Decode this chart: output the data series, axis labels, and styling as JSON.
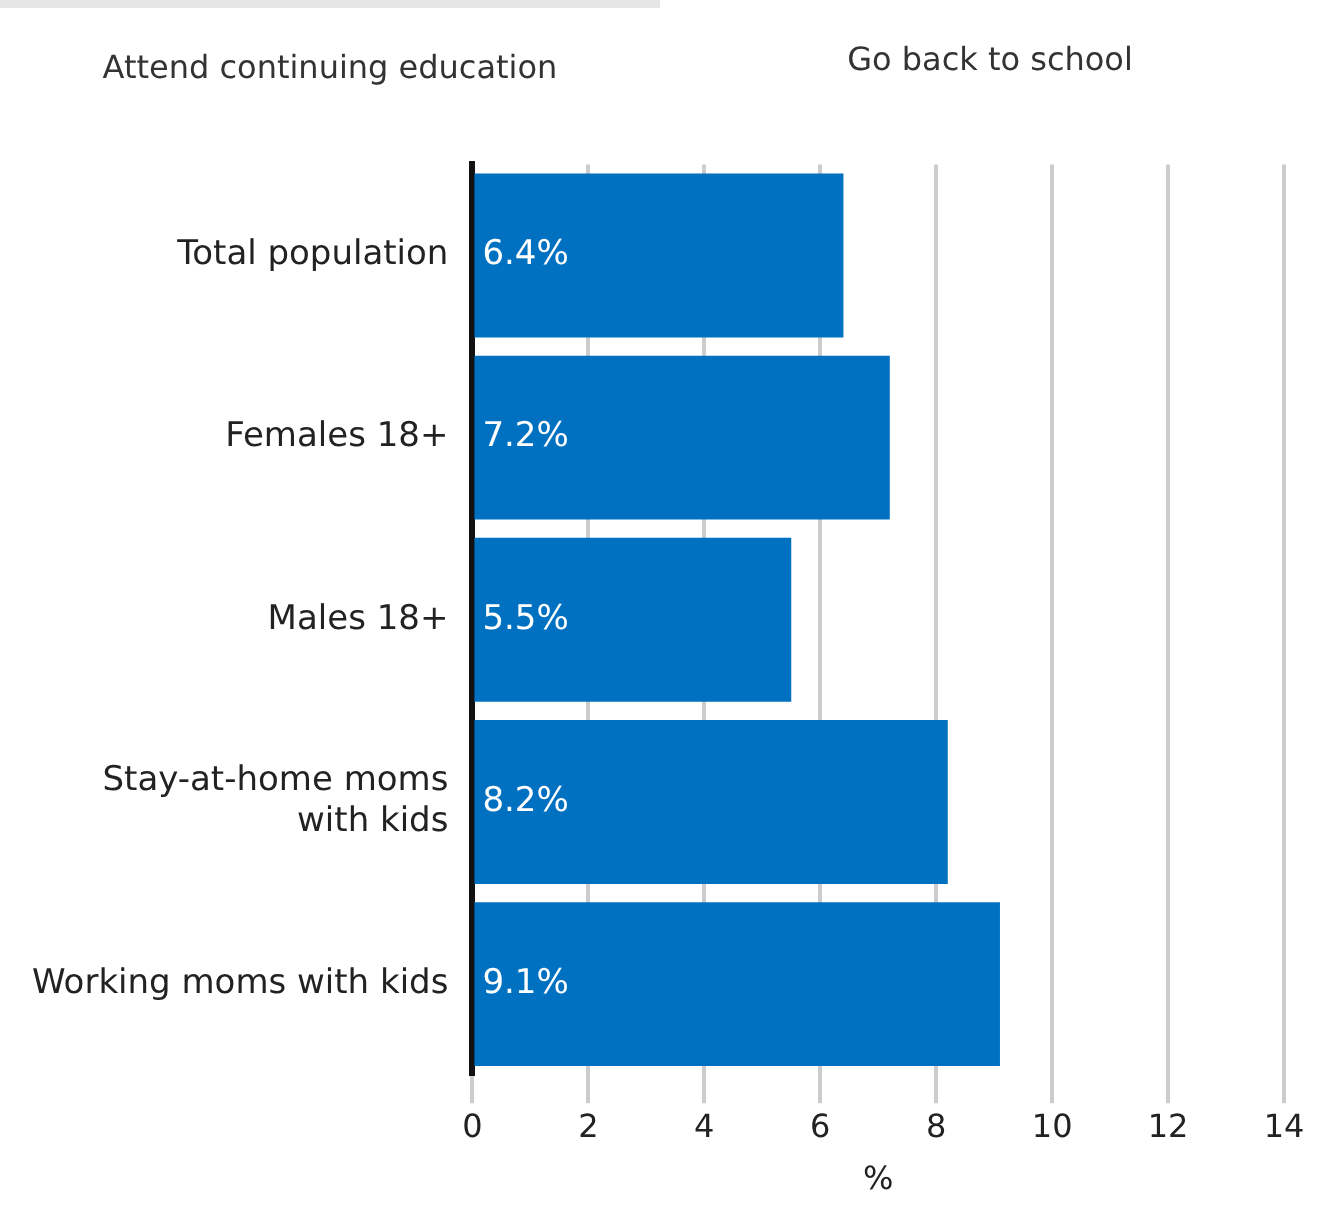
{
  "chart_data": {
    "type": "bar",
    "orientation": "horizontal",
    "categories": [
      "Total population",
      "Females 18+",
      "Males 18+",
      "Stay-at-home moms with kids",
      "Working moms with kids"
    ],
    "values": [
      6.4,
      7.2,
      5.5,
      8.2,
      9.1
    ],
    "value_labels": [
      "6.4%",
      "7.2%",
      "5.5%",
      "8.2%",
      "9.1%"
    ],
    "color": "#0070c0",
    "xlim": [
      0,
      14
    ],
    "xticks": [
      0,
      2,
      4,
      6,
      8,
      10,
      12,
      14
    ],
    "xlabel": "%",
    "grid": "x",
    "legend": false,
    "annotations": [
      "Attend continuing education",
      "Go back to school"
    ]
  }
}
